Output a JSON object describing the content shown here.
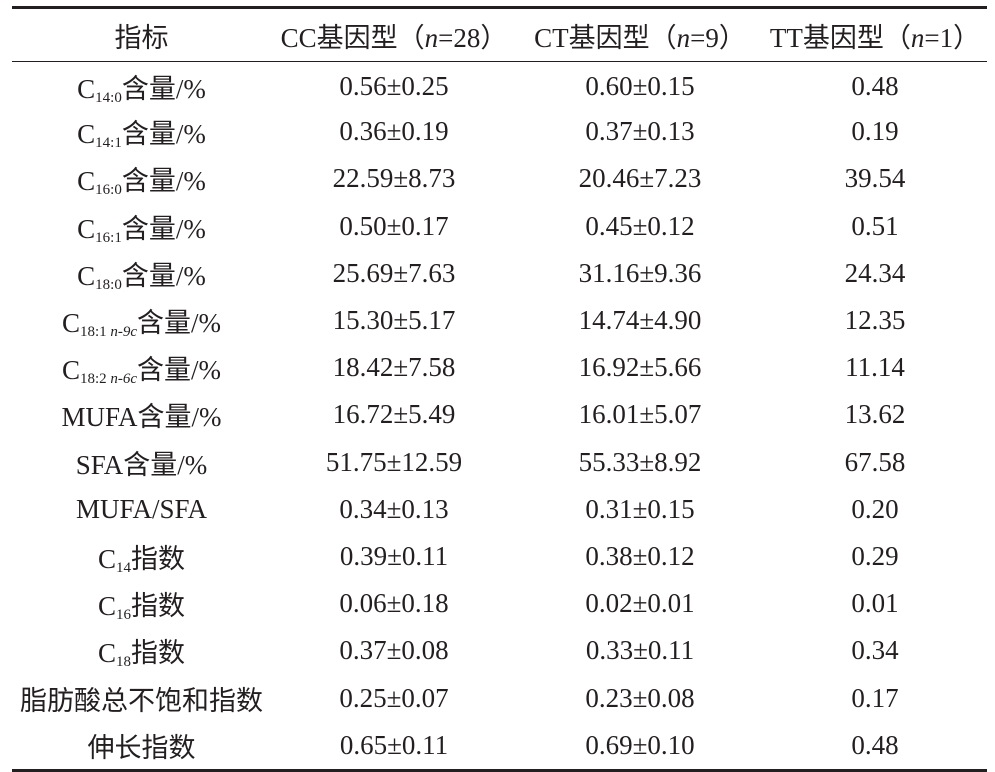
{
  "table": {
    "headers": [
      {
        "prefix": "指标",
        "n": "",
        "suffix": ""
      },
      {
        "prefix": "CC基因型（",
        "n": "n",
        "suffix": "=28）"
      },
      {
        "prefix": "CT基因型（",
        "n": "n",
        "suffix": "=9）"
      },
      {
        "prefix": "TT基因型（",
        "n": "n",
        "suffix": "=1）"
      }
    ],
    "rows": [
      {
        "pre": "C",
        "sub": "14:0",
        "subital": "",
        "post": "含量/%",
        "cc": "0.56±0.25",
        "ct": "0.60±0.15",
        "tt": "0.48"
      },
      {
        "pre": "C",
        "sub": "14:1",
        "subital": "",
        "post": "含量/%",
        "cc": "0.36±0.19",
        "ct": "0.37±0.13",
        "tt": "0.19"
      },
      {
        "pre": "C",
        "sub": "16:0",
        "subital": "",
        "post": "含量/%",
        "cc": "22.59±8.73",
        "ct": "20.46±7.23",
        "tt": "39.54"
      },
      {
        "pre": "C",
        "sub": "16:1",
        "subital": "",
        "post": "含量/%",
        "cc": "0.50±0.17",
        "ct": "0.45±0.12",
        "tt": "0.51"
      },
      {
        "pre": "C",
        "sub": "18:0",
        "subital": "",
        "post": "含量/%",
        "cc": "25.69±7.63",
        "ct": "31.16±9.36",
        "tt": "24.34"
      },
      {
        "pre": "C",
        "sub": "18:1 ",
        "subital": "n-9c",
        "post": "含量/%",
        "cc": "15.30±5.17",
        "ct": "14.74±4.90",
        "tt": "12.35"
      },
      {
        "pre": "C",
        "sub": "18:2 ",
        "subital": "n-6c",
        "post": "含量/%",
        "cc": "18.42±7.58",
        "ct": "16.92±5.66",
        "tt": "11.14"
      },
      {
        "pre": "MUFA含量/%",
        "sub": "",
        "subital": "",
        "post": "",
        "cc": "16.72±5.49",
        "ct": "16.01±5.07",
        "tt": "13.62"
      },
      {
        "pre": "SFA含量/%",
        "sub": "",
        "subital": "",
        "post": "",
        "cc": "51.75±12.59",
        "ct": "55.33±8.92",
        "tt": "67.58"
      },
      {
        "pre": "MUFA/SFA",
        "sub": "",
        "subital": "",
        "post": "",
        "cc": "0.34±0.13",
        "ct": "0.31±0.15",
        "tt": "0.20"
      },
      {
        "pre": "C",
        "sub": "14",
        "subital": "",
        "post": "指数",
        "cc": "0.39±0.11",
        "ct": "0.38±0.12",
        "tt": "0.29"
      },
      {
        "pre": "C",
        "sub": "16",
        "subital": "",
        "post": "指数",
        "cc": "0.06±0.18",
        "ct": "0.02±0.01",
        "tt": "0.01"
      },
      {
        "pre": "C",
        "sub": "18",
        "subital": "",
        "post": "指数",
        "cc": "0.37±0.08",
        "ct": "0.33±0.11",
        "tt": "0.34"
      },
      {
        "pre": "脂肪酸总不饱和指数",
        "sub": "",
        "subital": "",
        "post": "",
        "cc": "0.25±0.07",
        "ct": "0.23±0.08",
        "tt": "0.17"
      },
      {
        "pre": "伸长指数",
        "sub": "",
        "subital": "",
        "post": "",
        "cc": "0.65±0.11",
        "ct": "0.69±0.10",
        "tt": "0.48"
      }
    ]
  }
}
